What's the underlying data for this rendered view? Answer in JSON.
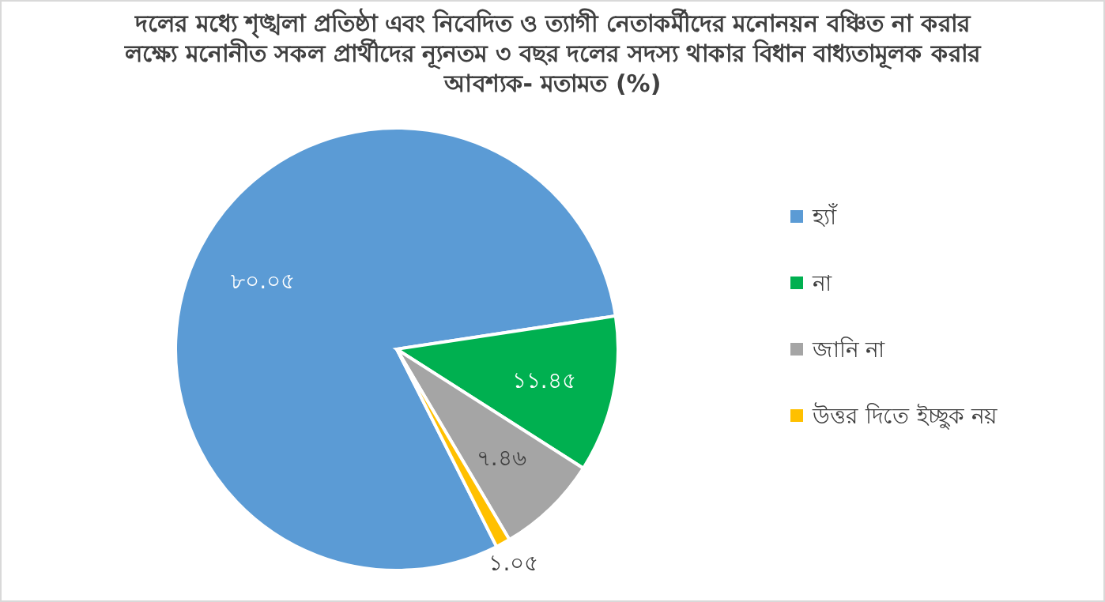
{
  "chart_data": {
    "type": "pie",
    "title": "দলের মধ্যে শৃঙ্খলা প্রতিষ্ঠা এবং নিবেদিত ও ত্যাগী নেতাকর্মীদের মনোনয়ন বঞ্চিত না করার লক্ষ্যে মনোনীত সকল প্রার্থীদের ন্যূনতম ৩ বছর দলের সদস্য থাকার বিধান বাধ্যতামূলক করার আবশ্যক- মতামত (%)",
    "categories": [
      "হ্যাঁ",
      "না",
      "জানি না",
      "উত্তর দিতে ইচ্ছুক নয়"
    ],
    "values": [
      80.05,
      11.45,
      7.46,
      1.05
    ],
    "value_labels": [
      "৮০.০৫",
      "১১.৪৫",
      "৭.৪৬",
      "১.০৫"
    ],
    "colors": [
      "#5b9bd5",
      "#00b050",
      "#a5a5a5",
      "#ffc000"
    ],
    "legend": "right",
    "marker": "square"
  }
}
